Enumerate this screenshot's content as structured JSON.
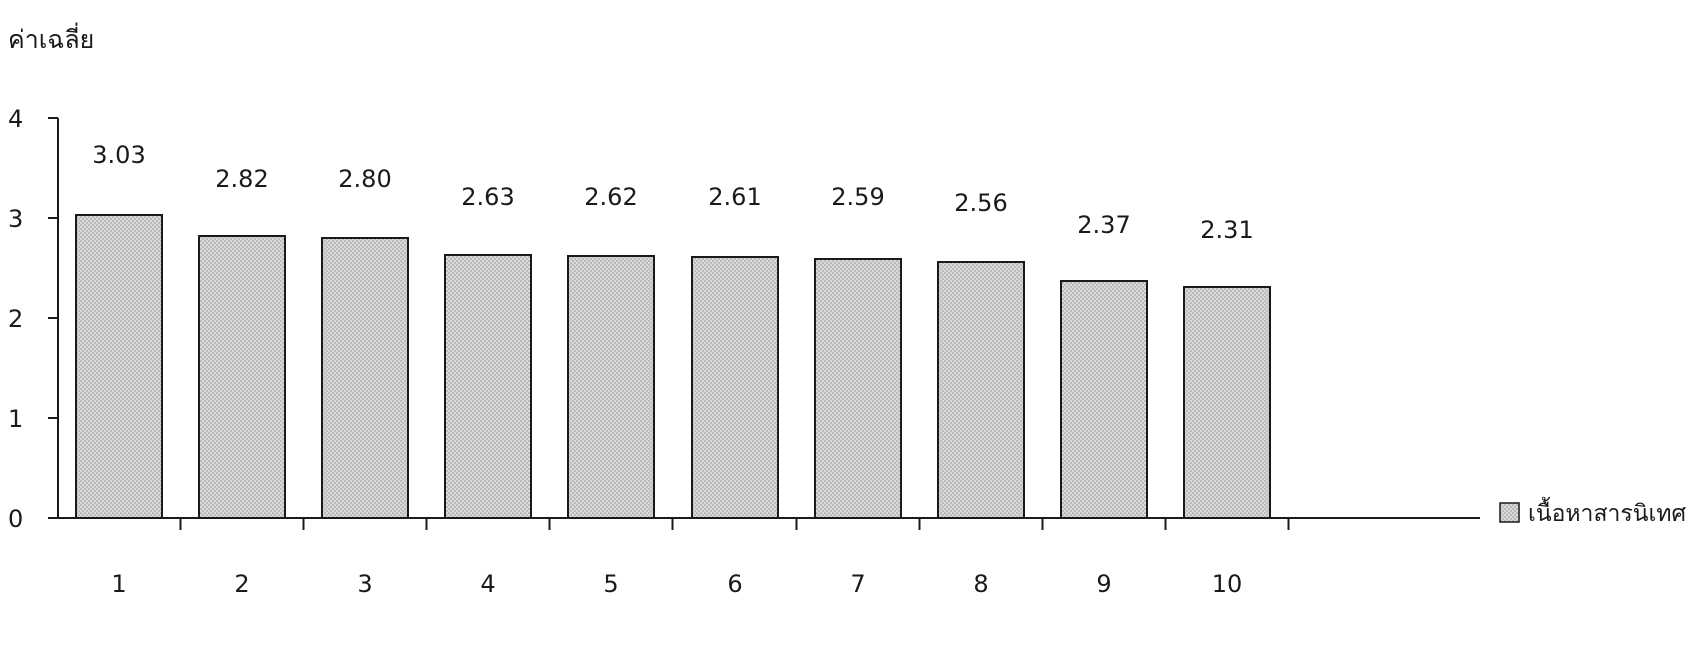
{
  "chart_data": {
    "type": "bar",
    "ylabel": "ค่าเฉลี่ย",
    "xlabel": "",
    "categories": [
      "1",
      "2",
      "3",
      "4",
      "5",
      "6",
      "7",
      "8",
      "9",
      "10"
    ],
    "series": [
      {
        "name": "เนื้อหาสารนิเทศ",
        "values": [
          3.03,
          2.82,
          2.8,
          2.63,
          2.62,
          2.61,
          2.59,
          2.56,
          2.37,
          2.31
        ],
        "labels": [
          "3.03",
          "2.82",
          "2.80",
          "2.63",
          "2.62",
          "2.61",
          "2.59",
          "2.56",
          "2.37",
          "2.31"
        ]
      }
    ],
    "yticks": [
      "0",
      "1",
      "2",
      "3",
      "4"
    ],
    "ylim": [
      0,
      4
    ],
    "grid": false,
    "legend_position": "right"
  },
  "colors": {
    "bar_fill": "#d9d9d9",
    "bar_dot": "#a6a6a6",
    "stroke": "#1a1a1a"
  }
}
